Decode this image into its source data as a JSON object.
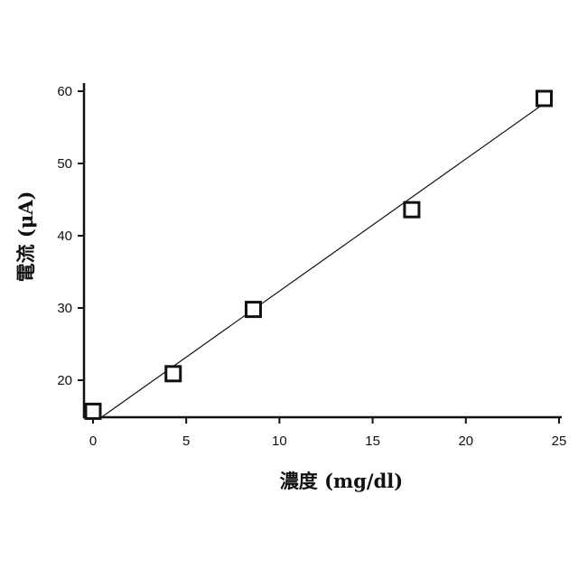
{
  "chart_data": {
    "type": "scatter",
    "title": "",
    "xlabel": "濃度 (mg/dl)",
    "ylabel": "電流 (μA)",
    "xlim": [
      0,
      25
    ],
    "ylim": [
      15,
      60
    ],
    "xticks": [
      0,
      5,
      10,
      15,
      20,
      25
    ],
    "yticks": [
      20,
      30,
      40,
      50,
      60
    ],
    "grid": false,
    "series": [
      {
        "marker": "open-square",
        "x": [
          0,
          4.3,
          8.6,
          17.1,
          24.2
        ],
        "y": [
          15.7,
          20.9,
          29.8,
          43.6,
          59.0
        ]
      }
    ],
    "fit_line": {
      "x": [
        0.3,
        24.2
      ],
      "y": [
        14.6,
        58.3
      ]
    },
    "colors": {
      "axis": "#111111",
      "marker": "#111111",
      "line": "#111111"
    }
  }
}
